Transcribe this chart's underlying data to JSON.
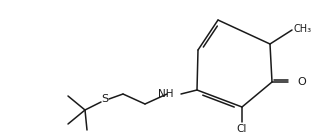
{
  "bg_color": "#ffffff",
  "line_color": "#1a1a1a",
  "atom_colors": {
    "N": "#1a1a1a",
    "O": "#1a1a1a",
    "S": "#1a1a1a",
    "Cl": "#1a1a1a",
    "C": "#1a1a1a",
    "H": "#1a1a1a"
  },
  "figsize": [
    3.22,
    1.37
  ],
  "dpi": 100,
  "lw": 1.1,
  "fontsize": 7.5
}
